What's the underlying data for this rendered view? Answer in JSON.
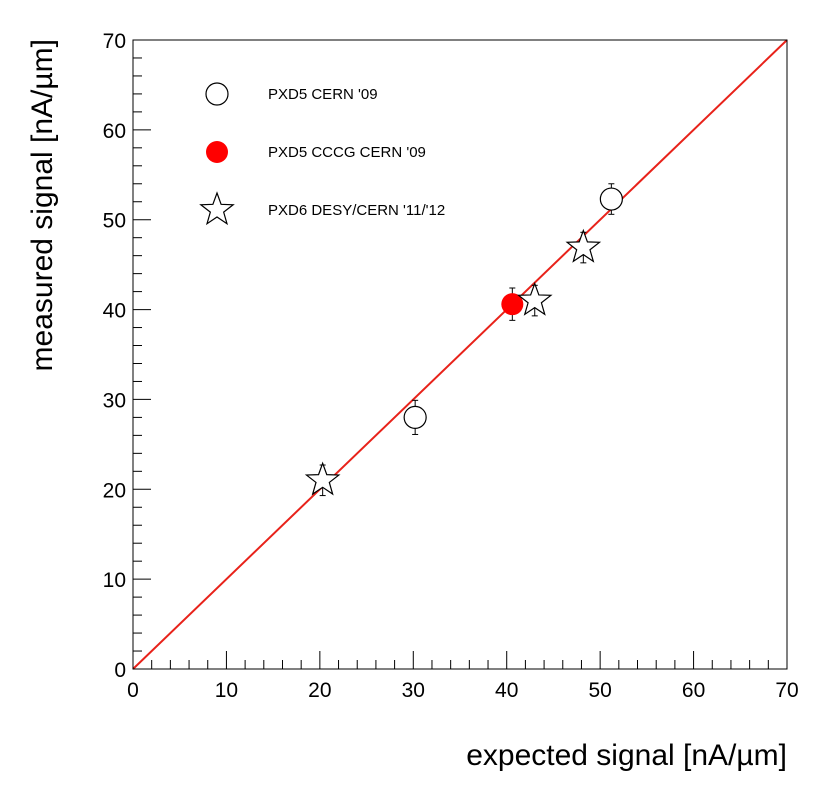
{
  "chart_data": {
    "type": "scatter",
    "xlabel": "expected signal [nA/µm]",
    "ylabel": "measured signal [nA/µm]",
    "xlim": [
      0,
      70
    ],
    "ylim": [
      0,
      70
    ],
    "xticks": [
      0,
      10,
      20,
      30,
      40,
      50,
      60,
      70
    ],
    "yticks": [
      0,
      10,
      20,
      30,
      40,
      50,
      60,
      70
    ],
    "x_tick_labels": [
      "0",
      "10",
      "20",
      "30",
      "40",
      "50",
      "60",
      "70"
    ],
    "y_tick_labels": [
      "0",
      "10",
      "20",
      "30",
      "40",
      "50",
      "60",
      "70"
    ],
    "grid": false,
    "legend_position": "top-left",
    "reference_line": {
      "x": [
        0,
        70
      ],
      "y": [
        0,
        70
      ],
      "color": "#e8221a"
    },
    "series": [
      {
        "name": "PXD5 CERN '09",
        "marker": "open-circle",
        "color": "#000000",
        "points": [
          {
            "x": 30.2,
            "y": 28.0,
            "err": 1.9
          },
          {
            "x": 51.2,
            "y": 52.3,
            "err": 1.7
          }
        ]
      },
      {
        "name": "PXD5 CCCG CERN '09",
        "marker": "filled-circle",
        "color": "#ff0000",
        "points": [
          {
            "x": 40.6,
            "y": 40.6,
            "err": 1.8
          }
        ]
      },
      {
        "name": "PXD6 DESY/CERN '11/'12",
        "marker": "open-star",
        "color": "#000000",
        "points": [
          {
            "x": 20.3,
            "y": 21.0,
            "err": 1.7
          },
          {
            "x": 43.0,
            "y": 41.0,
            "err": 1.7
          },
          {
            "x": 48.2,
            "y": 46.9,
            "err": 1.7
          }
        ]
      }
    ]
  }
}
